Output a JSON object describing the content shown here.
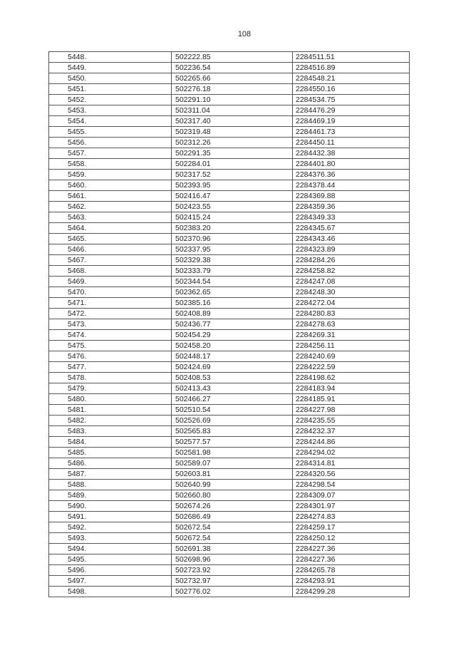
{
  "page_number": "108",
  "table": {
    "rows": [
      [
        "5448.",
        "502222.85",
        "2284511.51"
      ],
      [
        "5449.",
        "502236.54",
        "2284516.89"
      ],
      [
        "5450.",
        "502265.66",
        "2284548.21"
      ],
      [
        "5451.",
        "502276.18",
        "2284550.16"
      ],
      [
        "5452.",
        "502291.10",
        "2284534.75"
      ],
      [
        "5453.",
        "502311.04",
        "2284476.29"
      ],
      [
        "5454.",
        "502317.40",
        "2284469.19"
      ],
      [
        "5455.",
        "502319.48",
        "2284461.73"
      ],
      [
        "5456.",
        "502312.26",
        "2284450.11"
      ],
      [
        "5457.",
        "502291.35",
        "2284432.38"
      ],
      [
        "5458.",
        "502284.01",
        "2284401.80"
      ],
      [
        "5459.",
        "502317.52",
        "2284376.36"
      ],
      [
        "5460.",
        "502393.95",
        "2284378.44"
      ],
      [
        "5461.",
        "502416.47",
        "2284369.88"
      ],
      [
        "5462.",
        "502423.55",
        "2284359.36"
      ],
      [
        "5463.",
        "502415.24",
        "2284349.33"
      ],
      [
        "5464.",
        "502383.20",
        "2284345.67"
      ],
      [
        "5465.",
        "502370.96",
        "2284343.46"
      ],
      [
        "5466.",
        "502337.95",
        "2284323.89"
      ],
      [
        "5467.",
        "502329.38",
        "2284284.26"
      ],
      [
        "5468.",
        "502333.79",
        "2284258.82"
      ],
      [
        "5469.",
        "502344.54",
        "2284247.08"
      ],
      [
        "5470.",
        "502362.65",
        "2284248.30"
      ],
      [
        "5471.",
        "502385.16",
        "2284272.04"
      ],
      [
        "5472.",
        "502408.89",
        "2284280.83"
      ],
      [
        "5473.",
        "502436.77",
        "2284278.63"
      ],
      [
        "5474.",
        "502454.29",
        "2284269.31"
      ],
      [
        "5475.",
        "502458.20",
        "2284256.11"
      ],
      [
        "5476.",
        "502448.17",
        "2284240.69"
      ],
      [
        "5477.",
        "502424.69",
        "2284222.59"
      ],
      [
        "5478.",
        "502408.53",
        "2284198.62"
      ],
      [
        "5479.",
        "502413.43",
        "2284183.94"
      ],
      [
        "5480.",
        "502466.27",
        "2284185.91"
      ],
      [
        "5481.",
        "502510.54",
        "2284227.98"
      ],
      [
        "5482.",
        "502526.69",
        "2284235.55"
      ],
      [
        "5483.",
        "502565.83",
        "2284232.37"
      ],
      [
        "5484.",
        "502577.57",
        "2284244.86"
      ],
      [
        "5485.",
        "502581.98",
        "2284294.02"
      ],
      [
        "5486.",
        "502589.07",
        "2284314.81"
      ],
      [
        "5487.",
        "502603.81",
        "2284320.56"
      ],
      [
        "5488.",
        "502640.99",
        "2284298.54"
      ],
      [
        "5489.",
        "502660.80",
        "2284309.07"
      ],
      [
        "5490.",
        "502674.26",
        "2284301.97"
      ],
      [
        "5491.",
        "502686.49",
        "2284274.83"
      ],
      [
        "5492.",
        "502672.54",
        "2284259.17"
      ],
      [
        "5493.",
        "502672.54",
        "2284250.12"
      ],
      [
        "5494.",
        "502691.38",
        "2284227.36"
      ],
      [
        "5495.",
        "502698.96",
        "2284227.36"
      ],
      [
        "5496.",
        "502723.92",
        "2284265.78"
      ],
      [
        "5497.",
        "502732.97",
        "2284293.91"
      ],
      [
        "5498.",
        "502776.02",
        "2284299.28"
      ]
    ]
  }
}
